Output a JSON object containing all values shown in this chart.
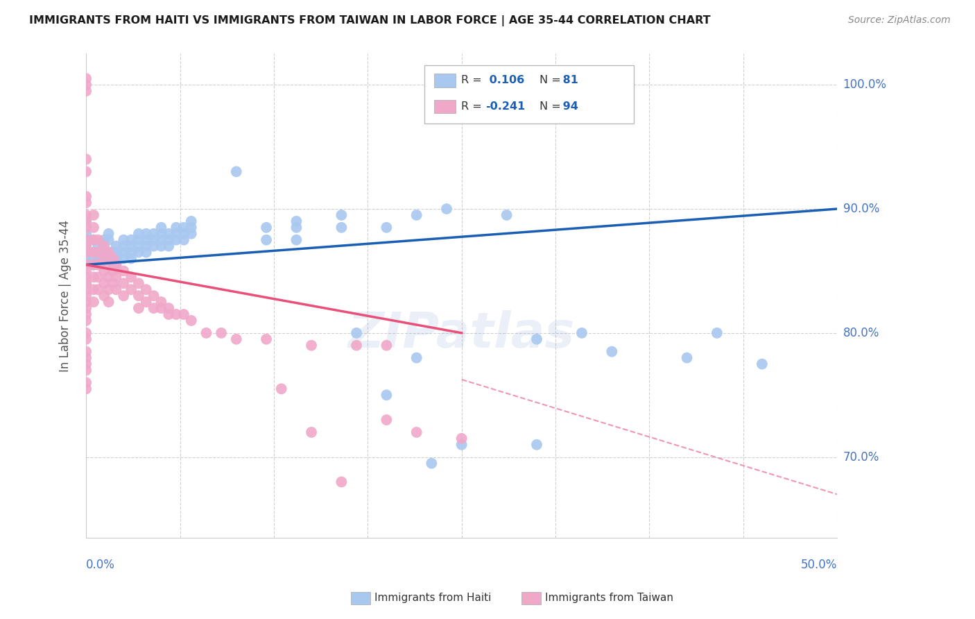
{
  "title": "IMMIGRANTS FROM HAITI VS IMMIGRANTS FROM TAIWAN IN LABOR FORCE | AGE 35-44 CORRELATION CHART",
  "source": "Source: ZipAtlas.com",
  "ylabel": "In Labor Force | Age 35-44",
  "xmin": 0.0,
  "xmax": 0.5,
  "ymin": 0.635,
  "ymax": 1.025,
  "right_yticks": [
    0.7,
    0.8,
    0.9,
    1.0
  ],
  "right_yticklabels": [
    "70.0%",
    "80.0%",
    "90.0%",
    "100.0%"
  ],
  "haiti_color": "#a8c8f0",
  "taiwan_color": "#f0a8c8",
  "haiti_R": 0.106,
  "haiti_N": 81,
  "taiwan_R": -0.241,
  "taiwan_N": 94,
  "trendline_haiti_color": "#1a5fb4",
  "trendline_taiwan_color": "#e8507a",
  "legend_label_haiti": "Immigrants from Haiti",
  "legend_label_taiwan": "Immigrants from Taiwan",
  "watermark": "ZIPatlas",
  "background_color": "#ffffff",
  "grid_color": "#d0d0d0",
  "haiti_scatter": [
    [
      0.0,
      0.84
    ],
    [
      0.0,
      0.855
    ],
    [
      0.0,
      0.86
    ],
    [
      0.0,
      0.87
    ],
    [
      0.0,
      0.875
    ],
    [
      0.0,
      0.88
    ],
    [
      0.0,
      0.89
    ],
    [
      0.0,
      0.855
    ],
    [
      0.0,
      0.865
    ],
    [
      0.0,
      0.875
    ],
    [
      0.005,
      0.855
    ],
    [
      0.005,
      0.86
    ],
    [
      0.005,
      0.865
    ],
    [
      0.005,
      0.875
    ],
    [
      0.005,
      0.855
    ],
    [
      0.008,
      0.87
    ],
    [
      0.008,
      0.855
    ],
    [
      0.008,
      0.86
    ],
    [
      0.012,
      0.86
    ],
    [
      0.012,
      0.865
    ],
    [
      0.012,
      0.87
    ],
    [
      0.012,
      0.875
    ],
    [
      0.015,
      0.86
    ],
    [
      0.015,
      0.865
    ],
    [
      0.015,
      0.875
    ],
    [
      0.015,
      0.88
    ],
    [
      0.018,
      0.855
    ],
    [
      0.018,
      0.86
    ],
    [
      0.018,
      0.865
    ],
    [
      0.02,
      0.855
    ],
    [
      0.02,
      0.86
    ],
    [
      0.02,
      0.865
    ],
    [
      0.02,
      0.87
    ],
    [
      0.025,
      0.86
    ],
    [
      0.025,
      0.865
    ],
    [
      0.025,
      0.87
    ],
    [
      0.025,
      0.875
    ],
    [
      0.03,
      0.86
    ],
    [
      0.03,
      0.865
    ],
    [
      0.03,
      0.87
    ],
    [
      0.03,
      0.875
    ],
    [
      0.035,
      0.865
    ],
    [
      0.035,
      0.87
    ],
    [
      0.035,
      0.875
    ],
    [
      0.035,
      0.88
    ],
    [
      0.04,
      0.865
    ],
    [
      0.04,
      0.87
    ],
    [
      0.04,
      0.875
    ],
    [
      0.04,
      0.88
    ],
    [
      0.045,
      0.87
    ],
    [
      0.045,
      0.875
    ],
    [
      0.045,
      0.88
    ],
    [
      0.05,
      0.87
    ],
    [
      0.05,
      0.875
    ],
    [
      0.05,
      0.88
    ],
    [
      0.05,
      0.885
    ],
    [
      0.055,
      0.87
    ],
    [
      0.055,
      0.875
    ],
    [
      0.055,
      0.88
    ],
    [
      0.06,
      0.875
    ],
    [
      0.06,
      0.88
    ],
    [
      0.06,
      0.885
    ],
    [
      0.065,
      0.875
    ],
    [
      0.065,
      0.88
    ],
    [
      0.065,
      0.885
    ],
    [
      0.07,
      0.88
    ],
    [
      0.07,
      0.885
    ],
    [
      0.07,
      0.89
    ],
    [
      0.1,
      0.93
    ],
    [
      0.12,
      0.875
    ],
    [
      0.12,
      0.885
    ],
    [
      0.14,
      0.875
    ],
    [
      0.14,
      0.885
    ],
    [
      0.14,
      0.89
    ],
    [
      0.17,
      0.885
    ],
    [
      0.17,
      0.895
    ],
    [
      0.2,
      0.885
    ],
    [
      0.22,
      0.895
    ],
    [
      0.24,
      0.9
    ],
    [
      0.28,
      0.895
    ],
    [
      0.3,
      0.795
    ],
    [
      0.33,
      0.8
    ],
    [
      0.35,
      0.785
    ],
    [
      0.4,
      0.78
    ],
    [
      0.42,
      0.8
    ],
    [
      0.45,
      0.775
    ]
  ],
  "haiti_outliers": [
    [
      0.18,
      0.8
    ],
    [
      0.22,
      0.78
    ],
    [
      0.25,
      0.71
    ],
    [
      0.3,
      0.71
    ],
    [
      0.2,
      0.75
    ],
    [
      0.23,
      0.695
    ]
  ],
  "taiwan_scatter": [
    [
      0.0,
      1.005
    ],
    [
      0.0,
      0.995
    ],
    [
      0.0,
      1.0
    ],
    [
      0.0,
      0.94
    ],
    [
      0.0,
      0.93
    ],
    [
      0.0,
      0.91
    ],
    [
      0.0,
      0.905
    ],
    [
      0.0,
      0.895
    ],
    [
      0.0,
      0.89
    ],
    [
      0.0,
      0.885
    ],
    [
      0.0,
      0.875
    ],
    [
      0.0,
      0.87
    ],
    [
      0.0,
      0.865
    ],
    [
      0.0,
      0.855
    ],
    [
      0.0,
      0.85
    ],
    [
      0.0,
      0.845
    ],
    [
      0.0,
      0.84
    ],
    [
      0.0,
      0.835
    ],
    [
      0.0,
      0.83
    ],
    [
      0.0,
      0.825
    ],
    [
      0.0,
      0.82
    ],
    [
      0.0,
      0.815
    ],
    [
      0.0,
      0.81
    ],
    [
      0.0,
      0.8
    ],
    [
      0.0,
      0.795
    ],
    [
      0.0,
      0.785
    ],
    [
      0.0,
      0.78
    ],
    [
      0.0,
      0.775
    ],
    [
      0.0,
      0.77
    ],
    [
      0.0,
      0.76
    ],
    [
      0.0,
      0.755
    ],
    [
      0.005,
      0.895
    ],
    [
      0.005,
      0.885
    ],
    [
      0.005,
      0.875
    ],
    [
      0.005,
      0.865
    ],
    [
      0.005,
      0.855
    ],
    [
      0.005,
      0.845
    ],
    [
      0.005,
      0.835
    ],
    [
      0.005,
      0.825
    ],
    [
      0.008,
      0.875
    ],
    [
      0.008,
      0.865
    ],
    [
      0.008,
      0.855
    ],
    [
      0.008,
      0.845
    ],
    [
      0.008,
      0.835
    ],
    [
      0.012,
      0.87
    ],
    [
      0.012,
      0.86
    ],
    [
      0.012,
      0.85
    ],
    [
      0.012,
      0.84
    ],
    [
      0.012,
      0.83
    ],
    [
      0.015,
      0.865
    ],
    [
      0.015,
      0.855
    ],
    [
      0.015,
      0.845
    ],
    [
      0.015,
      0.835
    ],
    [
      0.015,
      0.825
    ],
    [
      0.018,
      0.86
    ],
    [
      0.018,
      0.85
    ],
    [
      0.018,
      0.84
    ],
    [
      0.02,
      0.855
    ],
    [
      0.02,
      0.845
    ],
    [
      0.02,
      0.835
    ],
    [
      0.025,
      0.85
    ],
    [
      0.025,
      0.84
    ],
    [
      0.025,
      0.83
    ],
    [
      0.03,
      0.845
    ],
    [
      0.03,
      0.835
    ],
    [
      0.035,
      0.84
    ],
    [
      0.035,
      0.83
    ],
    [
      0.035,
      0.82
    ],
    [
      0.04,
      0.835
    ],
    [
      0.04,
      0.825
    ],
    [
      0.045,
      0.83
    ],
    [
      0.045,
      0.82
    ],
    [
      0.05,
      0.825
    ],
    [
      0.05,
      0.82
    ],
    [
      0.055,
      0.82
    ],
    [
      0.055,
      0.815
    ],
    [
      0.06,
      0.815
    ],
    [
      0.065,
      0.815
    ],
    [
      0.07,
      0.81
    ],
    [
      0.08,
      0.8
    ],
    [
      0.09,
      0.8
    ],
    [
      0.1,
      0.795
    ],
    [
      0.12,
      0.795
    ],
    [
      0.15,
      0.79
    ],
    [
      0.18,
      0.79
    ],
    [
      0.2,
      0.79
    ],
    [
      0.13,
      0.755
    ],
    [
      0.15,
      0.72
    ],
    [
      0.17,
      0.68
    ],
    [
      0.2,
      0.73
    ],
    [
      0.22,
      0.72
    ],
    [
      0.25,
      0.715
    ]
  ]
}
